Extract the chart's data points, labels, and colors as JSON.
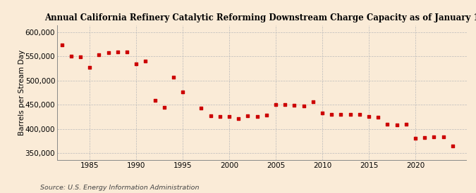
{
  "title": "Annual California Refinery Catalytic Reforming Downstream Charge Capacity as of January 1",
  "ylabel": "Barrels per Stream Day",
  "source": "Source: U.S. Energy Information Administration",
  "background_color": "#faebd7",
  "marker_color": "#cc0000",
  "years": [
    1982,
    1983,
    1984,
    1985,
    1986,
    1987,
    1988,
    1989,
    1990,
    1991,
    1992,
    1993,
    1994,
    1995,
    1997,
    1998,
    1999,
    2000,
    2001,
    2002,
    2003,
    2004,
    2005,
    2006,
    2007,
    2008,
    2009,
    2010,
    2011,
    2012,
    2013,
    2014,
    2015,
    2016,
    2017,
    2018,
    2019,
    2020,
    2021,
    2022,
    2023,
    2024
  ],
  "values": [
    574000,
    551000,
    549000,
    527000,
    553000,
    558000,
    559000,
    560000,
    535000,
    541000,
    459000,
    444000,
    507000,
    476000,
    443000,
    427000,
    425000,
    425000,
    421000,
    427000,
    425000,
    428000,
    450000,
    450000,
    449000,
    447000,
    456000,
    433000,
    430000,
    430000,
    430000,
    430000,
    425000,
    424000,
    409000,
    408000,
    409000,
    381000,
    382000,
    383000,
    383000,
    365000
  ],
  "ylim": [
    335000,
    615000
  ],
  "yticks": [
    350000,
    400000,
    450000,
    500000,
    550000,
    600000
  ],
  "ytick_labels": [
    "350,000",
    "400,000",
    "450,000",
    "500,000",
    "550,000",
    "600,000"
  ],
  "xticks": [
    1985,
    1990,
    1995,
    2000,
    2005,
    2010,
    2015,
    2020
  ],
  "xlim": [
    1981.5,
    2025.5
  ],
  "grid_color": "#bbbbbb",
  "title_fontsize": 8.5,
  "label_fontsize": 7.5,
  "tick_fontsize": 7.5,
  "source_fontsize": 6.8
}
